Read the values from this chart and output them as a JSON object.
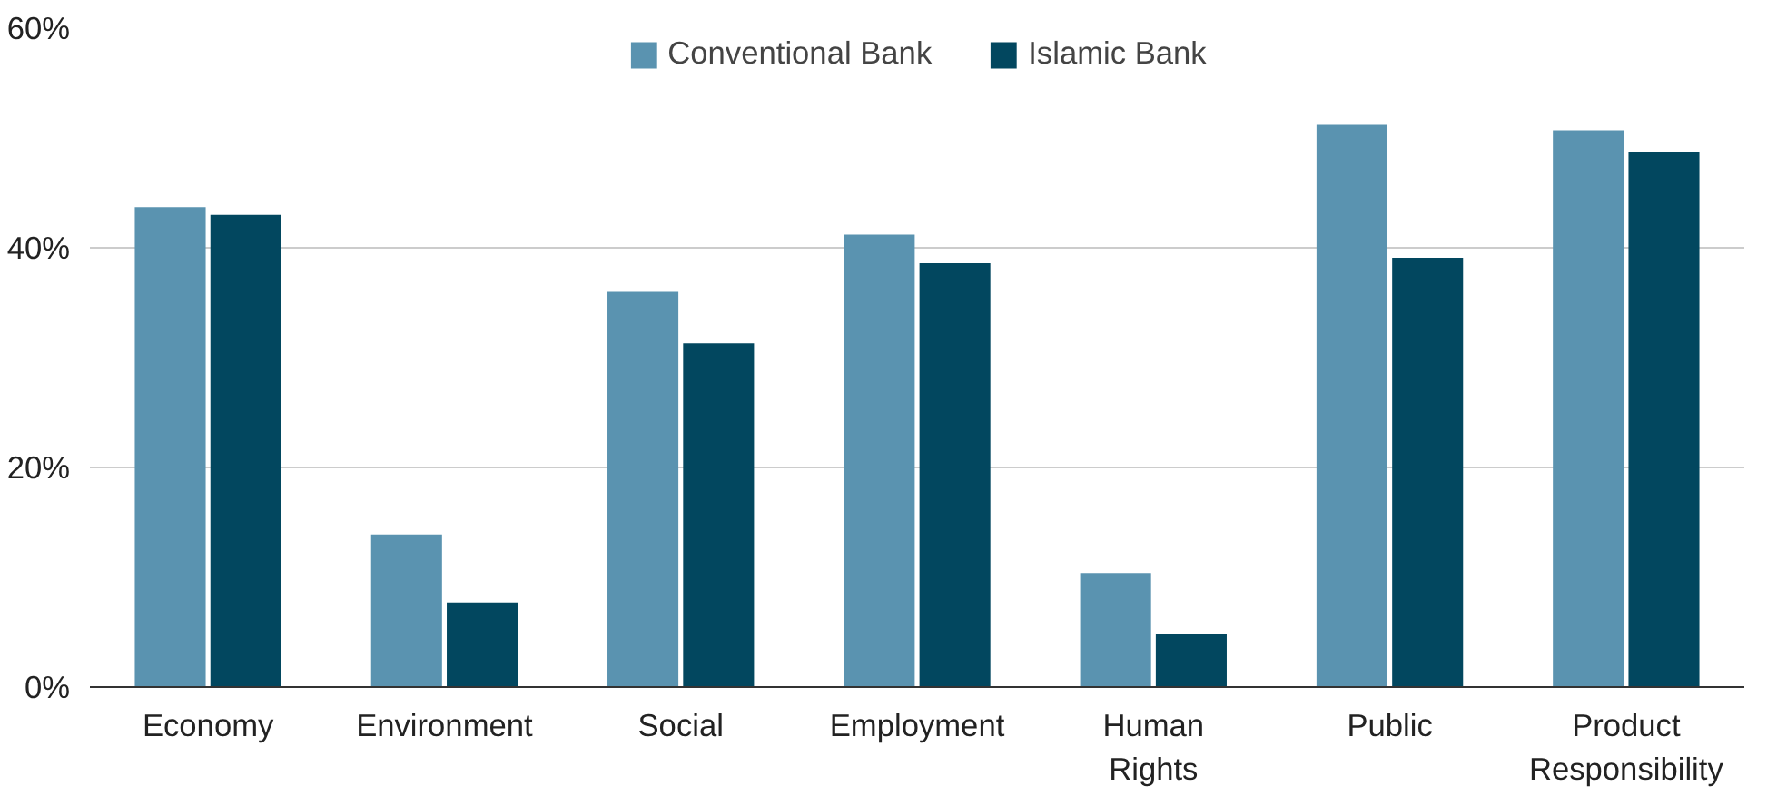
{
  "chart_data": {
    "type": "bar",
    "categories": [
      "Economy",
      "Environment",
      "Social",
      "Employment",
      "Human Rights",
      "Public",
      "Product Responsibility"
    ],
    "series": [
      {
        "name": "Conventional Bank",
        "color": "#5a93b0",
        "values": [
          43.7,
          13.9,
          36.0,
          41.2,
          10.4,
          51.2,
          50.7
        ]
      },
      {
        "name": "Islamic Bank",
        "color": "#02475f",
        "values": [
          43.0,
          7.7,
          31.3,
          38.6,
          4.8,
          39.1,
          48.7
        ]
      }
    ],
    "ylim": [
      0,
      60
    ],
    "yticks": [
      {
        "value": 0,
        "label": "0%"
      },
      {
        "value": 20,
        "label": "20%"
      },
      {
        "value": 40,
        "label": "40%"
      },
      {
        "value": 60,
        "label": "60%"
      }
    ],
    "grid": "y",
    "legend": "top"
  }
}
